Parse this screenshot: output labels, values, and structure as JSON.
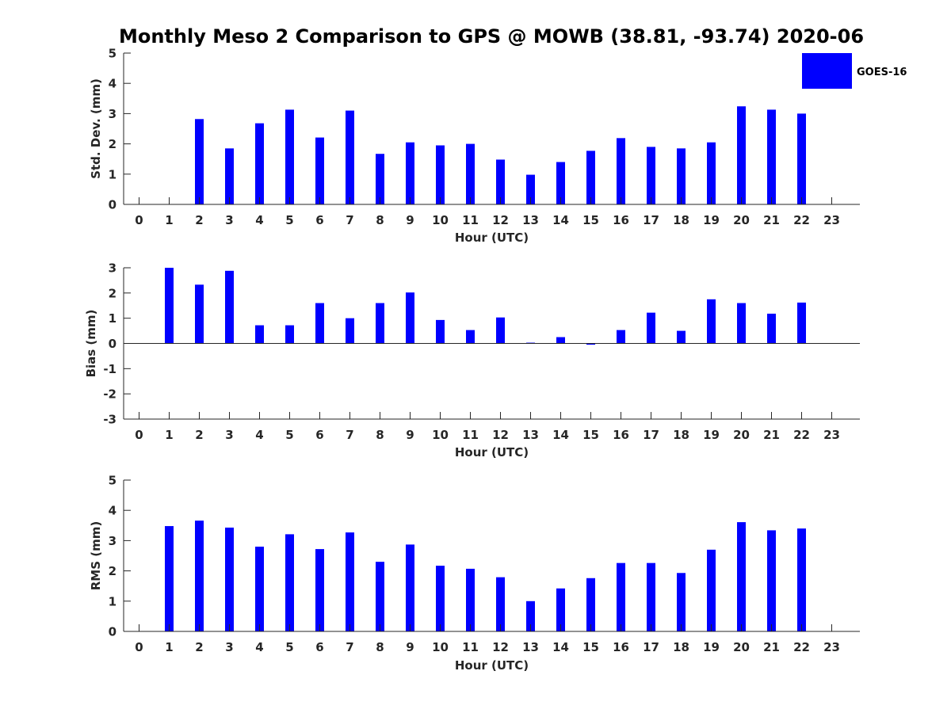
{
  "colors": {
    "bar": "#0000ff",
    "axis": "#262626"
  },
  "chart_data": [
    {
      "type": "bar",
      "title": "Monthly Meso 2 Comparison to GPS @ MOWB (38.81, -93.74) 2020-06",
      "xlabel": "Hour (UTC)",
      "ylabel": "Std. Dev. (mm)",
      "ylim": [
        0,
        5
      ],
      "yticks": [
        0,
        1,
        2,
        3,
        4,
        5
      ],
      "categories": [
        "0",
        "1",
        "2",
        "3",
        "4",
        "5",
        "6",
        "7",
        "8",
        "9",
        "10",
        "11",
        "12",
        "13",
        "14",
        "15",
        "16",
        "17",
        "18",
        "19",
        "20",
        "21",
        "22",
        "23"
      ],
      "series": [
        {
          "name": "GOES-16",
          "values": [
            null,
            null,
            2.82,
            1.85,
            2.68,
            3.13,
            2.21,
            3.1,
            1.67,
            2.05,
            1.95,
            2.0,
            1.48,
            0.98,
            1.4,
            1.77,
            2.19,
            1.9,
            1.85,
            2.05,
            3.24,
            3.13,
            3.0,
            null
          ]
        }
      ],
      "legend": {
        "position": "top-right",
        "entries": [
          "GOES-16"
        ]
      },
      "grid": false
    },
    {
      "type": "bar",
      "xlabel": "Hour (UTC)",
      "ylabel": "Bias (mm)",
      "ylim": [
        -3,
        3
      ],
      "yticks": [
        -3,
        -2,
        -1,
        0,
        1,
        2,
        3
      ],
      "categories": [
        "0",
        "1",
        "2",
        "3",
        "4",
        "5",
        "6",
        "7",
        "8",
        "9",
        "10",
        "11",
        "12",
        "13",
        "14",
        "15",
        "16",
        "17",
        "18",
        "19",
        "20",
        "21",
        "22",
        "23"
      ],
      "series": [
        {
          "values": [
            null,
            3.0,
            2.33,
            2.88,
            0.72,
            0.72,
            1.6,
            1.0,
            1.6,
            2.02,
            0.93,
            0.53,
            1.03,
            0.03,
            0.25,
            -0.05,
            0.53,
            1.22,
            0.5,
            1.75,
            1.6,
            1.18,
            1.62,
            null
          ]
        }
      ],
      "grid": false
    },
    {
      "type": "bar",
      "xlabel": "Hour (UTC)",
      "ylabel": "RMS (mm)",
      "ylim": [
        0,
        5
      ],
      "yticks": [
        0,
        1,
        2,
        3,
        4,
        5
      ],
      "categories": [
        "0",
        "1",
        "2",
        "3",
        "4",
        "5",
        "6",
        "7",
        "8",
        "9",
        "10",
        "11",
        "12",
        "13",
        "14",
        "15",
        "16",
        "17",
        "18",
        "19",
        "20",
        "21",
        "22",
        "23"
      ],
      "series": [
        {
          "values": [
            null,
            3.48,
            3.66,
            3.43,
            2.8,
            3.21,
            2.72,
            3.27,
            2.3,
            2.87,
            2.17,
            2.07,
            1.79,
            1.0,
            1.42,
            1.76,
            2.26,
            2.26,
            1.93,
            2.7,
            3.61,
            3.34,
            3.4,
            null
          ]
        }
      ],
      "grid": false
    }
  ]
}
